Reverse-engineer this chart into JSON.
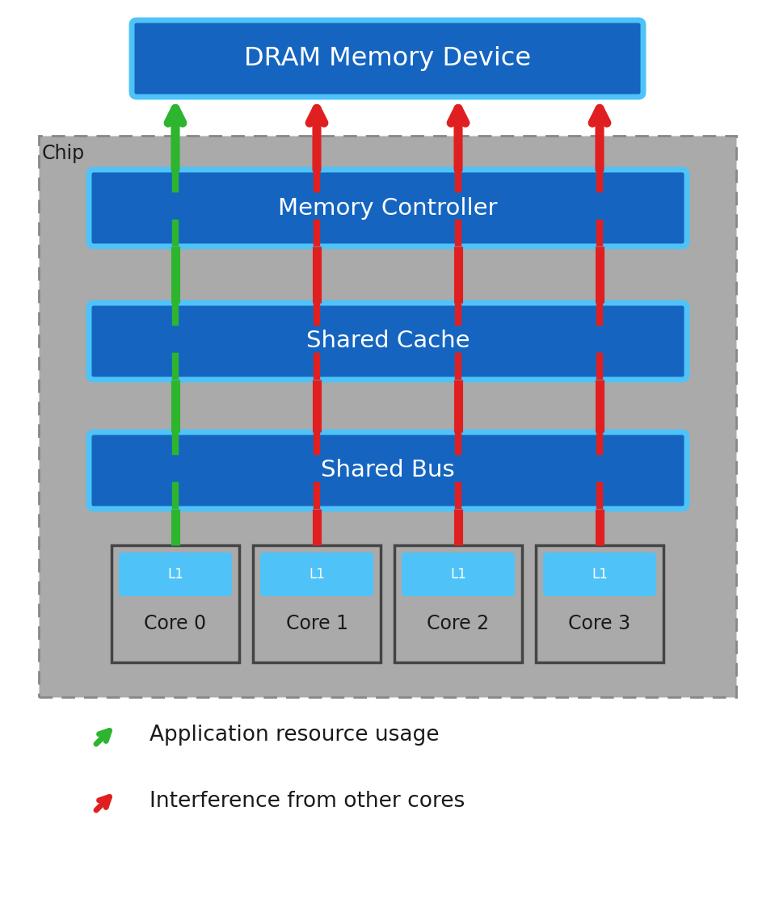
{
  "bg_color": "#ffffff",
  "chip_bg": "#aaaaaa",
  "chip_border": "#888888",
  "dram_fill": "#1565c0",
  "dram_border": "#4fc3f7",
  "mc_fill": "#1565c0",
  "mc_border": "#4fc3f7",
  "cache_fill": "#1565c0",
  "cache_border": "#4fc3f7",
  "bus_fill": "#1565c0",
  "bus_border": "#4fc3f7",
  "core_box_fill": "#aaaaaa",
  "core_box_border": "#444444",
  "l1_fill": "#4fc3f7",
  "l1_border": "#4fc3f7",
  "text_white": "#ffffff",
  "text_dark": "#1a1a1a",
  "green_color": "#2db52d",
  "red_color": "#e02020",
  "dram_label": "DRAM Memory Device",
  "mc_label": "Memory Controller",
  "cache_label": "Shared Cache",
  "bus_label": "Shared Bus",
  "cores": [
    "Core 0",
    "Core 1",
    "Core 2",
    "Core 3"
  ],
  "legend_green": "Application resource usage",
  "legend_red": "Interference from other cores",
  "chip_label": "Chip",
  "fig_w": 9.59,
  "fig_h": 11.34,
  "dpi": 100
}
